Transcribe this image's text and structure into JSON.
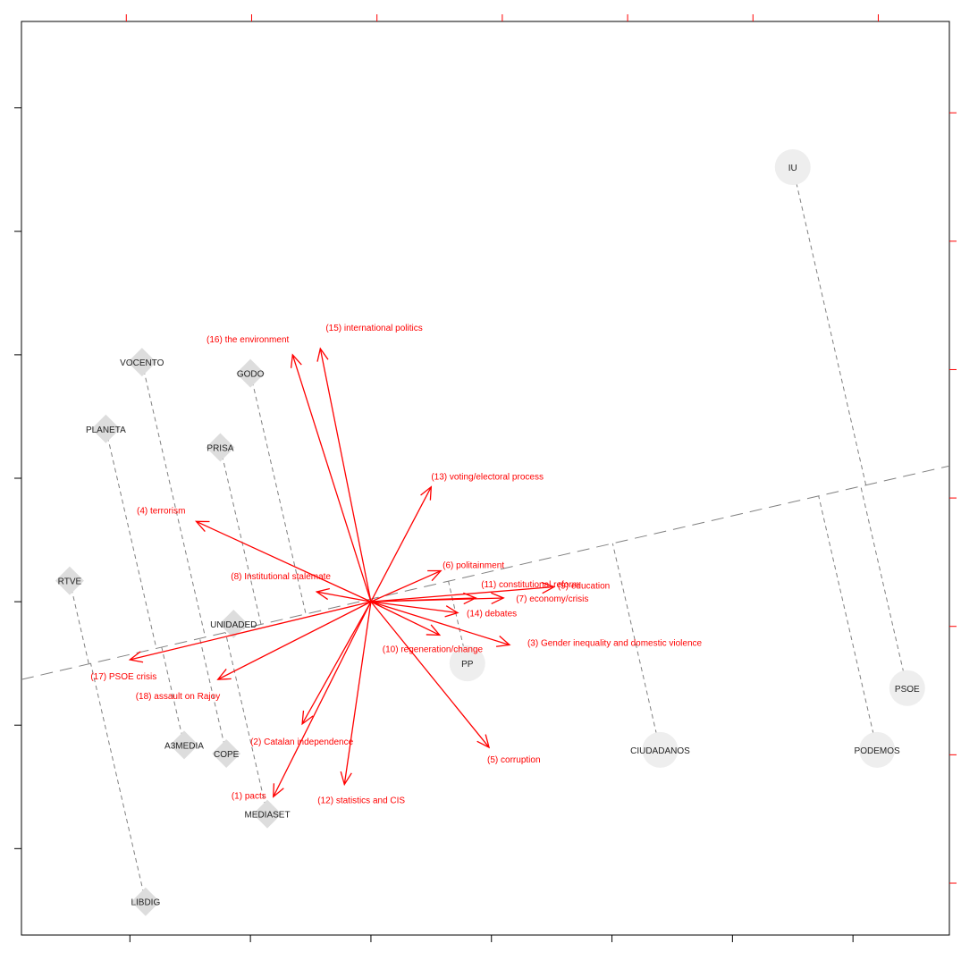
{
  "chart_data": {
    "type": "scatter",
    "title": "",
    "xlabel": "",
    "ylabel": "",
    "xlim": [
      -2.9,
      4.8
    ],
    "ylim": [
      -2.7,
      4.7
    ],
    "grid": false,
    "colors": {
      "frame": "#000000",
      "arrow": "#ff0000",
      "media_marker": "#dddddd",
      "party_marker": "#eeeeee",
      "projection_line": "#808080",
      "label_text": "#222222",
      "topic_text": "#ff0000"
    },
    "axis_line": {
      "from": [
        -2.9,
        -0.63
      ],
      "to": [
        4.8,
        1.1
      ]
    },
    "media": [
      {
        "name": "VOCENTO",
        "x": -1.9,
        "y": 1.94
      },
      {
        "name": "GODO",
        "x": -1.0,
        "y": 1.85
      },
      {
        "name": "PLANETA",
        "x": -2.2,
        "y": 1.4
      },
      {
        "name": "PRISA",
        "x": -1.25,
        "y": 1.25
      },
      {
        "name": "RTVE",
        "x": -2.5,
        "y": 0.17
      },
      {
        "name": "UNIDADED",
        "x": -1.14,
        "y": -0.18
      },
      {
        "name": "A3MEDIA",
        "x": -1.55,
        "y": -1.16
      },
      {
        "name": "COPE",
        "x": -1.2,
        "y": -1.23
      },
      {
        "name": "MEDIASET",
        "x": -0.86,
        "y": -1.72
      },
      {
        "name": "LIBDIG",
        "x": -1.87,
        "y": -2.43
      }
    ],
    "parties": [
      {
        "name": "IU",
        "x": 3.5,
        "y": 3.52
      },
      {
        "name": "PP",
        "x": 0.8,
        "y": -0.5
      },
      {
        "name": "CIUDADANOS",
        "x": 2.4,
        "y": -1.2
      },
      {
        "name": "PODEMOS",
        "x": 4.2,
        "y": -1.2
      },
      {
        "name": "PSOE",
        "x": 4.45,
        "y": -0.7
      }
    ],
    "topics": [
      {
        "label": "(1) pacts",
        "x": -0.81,
        "y": -1.58
      },
      {
        "label": "(2) Catalan independence",
        "x": -0.57,
        "y": -0.99
      },
      {
        "label": "(3) Gender inequality and domestic violence",
        "x": 1.15,
        "y": -0.35
      },
      {
        "label": "(4) terrorism",
        "x": -1.45,
        "y": 0.65
      },
      {
        "label": "(5) corruption",
        "x": 0.98,
        "y": -1.18
      },
      {
        "label": "(6) politainment",
        "x": 0.58,
        "y": 0.25
      },
      {
        "label": "(7) economy/crisis",
        "x": 1.1,
        "y": 0.03
      },
      {
        "label": "(8) Institutional stalemate",
        "x": -0.45,
        "y": 0.08
      },
      {
        "label": "(9) education",
        "x": 1.52,
        "y": 0.12
      },
      {
        "label": "(10) regeneration/change",
        "x": 0.57,
        "y": -0.27
      },
      {
        "label": "(11) constitutional reform",
        "x": 0.87,
        "y": 0.03
      },
      {
        "label": "(12) statistics and CIS",
        "x": -0.22,
        "y": -1.48
      },
      {
        "label": "(13) voting/electoral process",
        "x": 0.5,
        "y": 0.93
      },
      {
        "label": "(14) debates",
        "x": 0.72,
        "y": -0.09
      },
      {
        "label": "(15) international politics",
        "x": -0.42,
        "y": 2.05
      },
      {
        "label": "(16) the environment",
        "x": -0.65,
        "y": 2.0
      },
      {
        "label": "(17) PSOE crisis",
        "x": -2.0,
        "y": -0.47
      },
      {
        "label": "(18) assault on Rajoy",
        "x": -1.27,
        "y": -0.63
      }
    ]
  }
}
